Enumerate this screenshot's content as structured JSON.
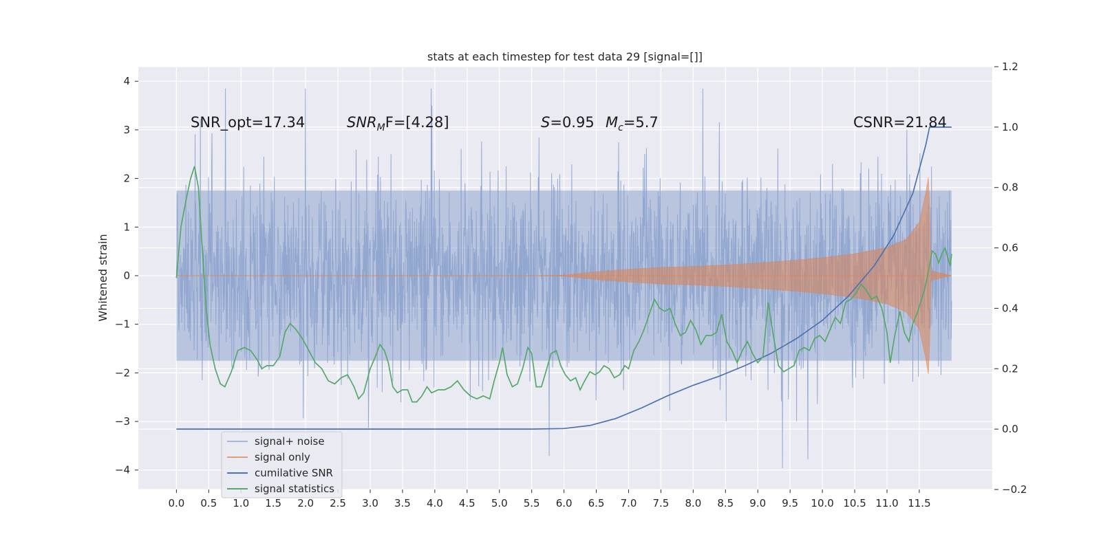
{
  "chart_data": {
    "type": "line",
    "title": "stats at each timestep for test data 29 [signal=[]]",
    "xlabel": "",
    "ylabel": "Whitened strain",
    "y2label": "",
    "xlim": [
      -0.59,
      12.63
    ],
    "ylim": [
      -4.4,
      4.3
    ],
    "y2lim": [
      -0.2,
      1.2
    ],
    "x_ticks": [
      "0.0",
      "0.5",
      "1.0",
      "1.5",
      "2.0",
      "2.5",
      "3.0",
      "3.5",
      "4.0",
      "4.5",
      "5.0",
      "5.5",
      "6.0",
      "6.5",
      "7.0",
      "7.5",
      "8.0",
      "8.5",
      "9.0",
      "9.5",
      "10.0",
      "10.5",
      "11.0",
      "11.5"
    ],
    "y_ticks": [
      "4",
      "3",
      "2",
      "1",
      "0",
      "−1",
      "−2",
      "−3",
      "−4"
    ],
    "y2_ticks": [
      "1.2",
      "1.0",
      "0.8",
      "0.6",
      "0.4",
      "0.2",
      "0.0",
      "−0.2"
    ],
    "grid": true,
    "legend_position": "lower-left",
    "annotations": [
      {
        "id": "snr-opt",
        "text": "SNR_opt=17.34"
      },
      {
        "id": "snr-mf",
        "text": "F=[4.28]",
        "prefix_italic": "SNR",
        "subscript": "M"
      },
      {
        "id": "s",
        "text": "=0.95",
        "prefix_italic": "S"
      },
      {
        "id": "mc",
        "text": "=5.7",
        "prefix_italic": "M",
        "subscript": "c"
      },
      {
        "id": "csnr",
        "text": "CSNR=21.84"
      }
    ],
    "series": [
      {
        "name": "signal+ noise",
        "axis": "left",
        "color": "#8fa5cf",
        "kind": "noise",
        "x_range": [
          0.0,
          12.0
        ],
        "envelope_sigma": 1.0,
        "peak_range": [
          -4.1,
          3.85
        ]
      },
      {
        "name": "signal only",
        "axis": "left",
        "color": "#dd8452",
        "kind": "chirp",
        "x_range": [
          0.0,
          12.0
        ],
        "envelope": [
          [
            0.0,
            0.0
          ],
          [
            5.5,
            0.0
          ],
          [
            6.0,
            0.01
          ],
          [
            6.5,
            0.08
          ],
          [
            7.0,
            0.13
          ],
          [
            7.5,
            0.17
          ],
          [
            8.0,
            0.19
          ],
          [
            8.5,
            0.22
          ],
          [
            9.0,
            0.26
          ],
          [
            9.5,
            0.31
          ],
          [
            10.0,
            0.37
          ],
          [
            10.5,
            0.45
          ],
          [
            11.0,
            0.58
          ],
          [
            11.3,
            0.75
          ],
          [
            11.5,
            1.1
          ],
          [
            11.6,
            1.7
          ],
          [
            11.65,
            2.1
          ],
          [
            11.68,
            0.1
          ],
          [
            12.0,
            0.0
          ]
        ]
      },
      {
        "name": "cumilative SNR",
        "axis": "right",
        "color": "#4c72b0",
        "points": [
          [
            0.0,
            0.0
          ],
          [
            5.5,
            0.0
          ],
          [
            6.0,
            0.002
          ],
          [
            6.4,
            0.012
          ],
          [
            6.8,
            0.035
          ],
          [
            7.2,
            0.07
          ],
          [
            7.6,
            0.11
          ],
          [
            8.0,
            0.145
          ],
          [
            8.4,
            0.175
          ],
          [
            8.8,
            0.21
          ],
          [
            9.2,
            0.25
          ],
          [
            9.6,
            0.3
          ],
          [
            10.0,
            0.36
          ],
          [
            10.4,
            0.44
          ],
          [
            10.8,
            0.54
          ],
          [
            11.1,
            0.64
          ],
          [
            11.4,
            0.78
          ],
          [
            11.6,
            0.94
          ],
          [
            11.66,
            1.0
          ],
          [
            12.0,
            1.0
          ]
        ]
      },
      {
        "name": "signal statistics",
        "axis": "right",
        "color": "#55a868",
        "points": [
          [
            0.0,
            0.5
          ],
          [
            0.07,
            0.67
          ],
          [
            0.15,
            0.76
          ],
          [
            0.22,
            0.83
          ],
          [
            0.28,
            0.87
          ],
          [
            0.34,
            0.8
          ],
          [
            0.4,
            0.6
          ],
          [
            0.46,
            0.4
          ],
          [
            0.52,
            0.28
          ],
          [
            0.6,
            0.2
          ],
          [
            0.68,
            0.15
          ],
          [
            0.75,
            0.14
          ],
          [
            0.85,
            0.19
          ],
          [
            0.95,
            0.26
          ],
          [
            1.05,
            0.27
          ],
          [
            1.15,
            0.26
          ],
          [
            1.25,
            0.23
          ],
          [
            1.32,
            0.2
          ],
          [
            1.4,
            0.21
          ],
          [
            1.5,
            0.21
          ],
          [
            1.6,
            0.24
          ],
          [
            1.68,
            0.32
          ],
          [
            1.76,
            0.35
          ],
          [
            1.85,
            0.33
          ],
          [
            1.95,
            0.3
          ],
          [
            2.05,
            0.26
          ],
          [
            2.15,
            0.22
          ],
          [
            2.25,
            0.2
          ],
          [
            2.35,
            0.16
          ],
          [
            2.45,
            0.15
          ],
          [
            2.55,
            0.17
          ],
          [
            2.65,
            0.18
          ],
          [
            2.75,
            0.14
          ],
          [
            2.82,
            0.1
          ],
          [
            2.9,
            0.12
          ],
          [
            3.0,
            0.2
          ],
          [
            3.08,
            0.24
          ],
          [
            3.15,
            0.28
          ],
          [
            3.22,
            0.26
          ],
          [
            3.28,
            0.22
          ],
          [
            3.35,
            0.14
          ],
          [
            3.42,
            0.12
          ],
          [
            3.5,
            0.13
          ],
          [
            3.58,
            0.13
          ],
          [
            3.65,
            0.09
          ],
          [
            3.72,
            0.09
          ],
          [
            3.8,
            0.11
          ],
          [
            3.88,
            0.14
          ],
          [
            3.95,
            0.12
          ],
          [
            4.05,
            0.13
          ],
          [
            4.15,
            0.13
          ],
          [
            4.25,
            0.14
          ],
          [
            4.35,
            0.16
          ],
          [
            4.45,
            0.13
          ],
          [
            4.55,
            0.11
          ],
          [
            4.65,
            0.1
          ],
          [
            4.75,
            0.11
          ],
          [
            4.85,
            0.1
          ],
          [
            4.92,
            0.16
          ],
          [
            5.0,
            0.22
          ],
          [
            5.05,
            0.27
          ],
          [
            5.12,
            0.18
          ],
          [
            5.2,
            0.14
          ],
          [
            5.28,
            0.15
          ],
          [
            5.36,
            0.2
          ],
          [
            5.44,
            0.27
          ],
          [
            5.5,
            0.25
          ],
          [
            5.57,
            0.14
          ],
          [
            5.65,
            0.14
          ],
          [
            5.72,
            0.19
          ],
          [
            5.8,
            0.25
          ],
          [
            5.88,
            0.26
          ],
          [
            5.95,
            0.21
          ],
          [
            6.02,
            0.18
          ],
          [
            6.1,
            0.16
          ],
          [
            6.18,
            0.17
          ],
          [
            6.25,
            0.13
          ],
          [
            6.32,
            0.16
          ],
          [
            6.4,
            0.19
          ],
          [
            6.48,
            0.18
          ],
          [
            6.55,
            0.19
          ],
          [
            6.62,
            0.21
          ],
          [
            6.7,
            0.2
          ],
          [
            6.78,
            0.17
          ],
          [
            6.86,
            0.18
          ],
          [
            6.94,
            0.21
          ],
          [
            7.0,
            0.2
          ],
          [
            7.08,
            0.26
          ],
          [
            7.16,
            0.29
          ],
          [
            7.24,
            0.33
          ],
          [
            7.32,
            0.38
          ],
          [
            7.4,
            0.43
          ],
          [
            7.48,
            0.4
          ],
          [
            7.56,
            0.39
          ],
          [
            7.64,
            0.4
          ],
          [
            7.72,
            0.35
          ],
          [
            7.8,
            0.31
          ],
          [
            7.88,
            0.32
          ],
          [
            7.96,
            0.36
          ],
          [
            8.04,
            0.33
          ],
          [
            8.12,
            0.28
          ],
          [
            8.2,
            0.31
          ],
          [
            8.28,
            0.31
          ],
          [
            8.36,
            0.32
          ],
          [
            8.44,
            0.38
          ],
          [
            8.52,
            0.29
          ],
          [
            8.6,
            0.26
          ],
          [
            8.68,
            0.22
          ],
          [
            8.76,
            0.26
          ],
          [
            8.84,
            0.29
          ],
          [
            8.92,
            0.25
          ],
          [
            9.0,
            0.22
          ],
          [
            9.08,
            0.24
          ],
          [
            9.16,
            0.42
          ],
          [
            9.24,
            0.31
          ],
          [
            9.32,
            0.21
          ],
          [
            9.4,
            0.19
          ],
          [
            9.48,
            0.2
          ],
          [
            9.56,
            0.21
          ],
          [
            9.64,
            0.26
          ],
          [
            9.72,
            0.27
          ],
          [
            9.8,
            0.26
          ],
          [
            9.88,
            0.3
          ],
          [
            9.96,
            0.31
          ],
          [
            10.04,
            0.29
          ],
          [
            10.12,
            0.33
          ],
          [
            10.2,
            0.37
          ],
          [
            10.28,
            0.35
          ],
          [
            10.36,
            0.42
          ],
          [
            10.44,
            0.43
          ],
          [
            10.52,
            0.45
          ],
          [
            10.6,
            0.48
          ],
          [
            10.68,
            0.46
          ],
          [
            10.76,
            0.43
          ],
          [
            10.84,
            0.44
          ],
          [
            10.92,
            0.4
          ],
          [
            11.0,
            0.32
          ],
          [
            11.05,
            0.22
          ],
          [
            11.12,
            0.31
          ],
          [
            11.2,
            0.39
          ],
          [
            11.27,
            0.32
          ],
          [
            11.34,
            0.29
          ],
          [
            11.4,
            0.35
          ],
          [
            11.46,
            0.38
          ],
          [
            11.52,
            0.42
          ],
          [
            11.58,
            0.46
          ],
          [
            11.64,
            0.52
          ],
          [
            11.7,
            0.59
          ],
          [
            11.75,
            0.58
          ],
          [
            11.8,
            0.55
          ],
          [
            11.85,
            0.58
          ],
          [
            11.9,
            0.6
          ],
          [
            11.95,
            0.56
          ],
          [
            11.98,
            0.54
          ],
          [
            12.0,
            0.58
          ]
        ]
      }
    ]
  }
}
